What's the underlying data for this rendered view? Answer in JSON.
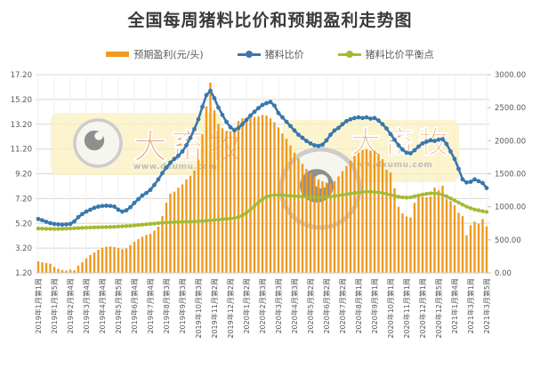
{
  "title": "全国每周猪料比价和预期盈利走势图",
  "watermark": {
    "brand": "大畜牧",
    "url": "www.dxumu.com"
  },
  "colors": {
    "bar_orange": "#f09a1e",
    "line_blue": "#3878ad",
    "line_olive": "#a5ba30",
    "grid": "#d8d8d8",
    "grid_vertical": "#efefef",
    "axis_text": "#595959",
    "watermark_fill": "#faf0bd",
    "watermark_text": "#e2702a"
  },
  "chart_data": {
    "type": "bar",
    "subtype": "combo bar+line, dual axis",
    "n_points": 113,
    "tick_every": 4,
    "x_tick_labels": [
      "2019年1月第1周",
      "2019年1月第5周",
      "2019年2月第4周",
      "2019年3月第4周",
      "2019年4月第4周",
      "2019年5月第5周",
      "2019年6月第4周",
      "2019年7月第4周",
      "2019年8月第3周",
      "2019年9月第3周",
      "2019年10月第3周",
      "2019年11月第2周",
      "2019年12月第2周",
      "2020年1月第2周",
      "2020年2月第3周",
      "2020年3月第3周",
      "2020年4月第3周",
      "2020年5月第2周",
      "2020年6月第2周",
      "2020年7月第2周",
      "2020年8月第1周",
      "2020年9月第1周",
      "2020年10月第1周",
      "2020年11月第1周",
      "2020年12月第1周",
      "2020年12月第5周",
      "2021年1月第4周",
      "2021年3月第1周",
      "2021年3月第5周"
    ],
    "left_axis": {
      "min": 1.2,
      "max": 17.2,
      "ticks": [
        "17.20",
        "15.20",
        "13.20",
        "11.20",
        "9.20",
        "7.20",
        "5.20",
        "3.20",
        "1.20"
      ]
    },
    "right_axis": {
      "min": 0,
      "max": 3000,
      "ticks": [
        "3000.00",
        "2500.00",
        "2000.00",
        "1500.00",
        "1000.00",
        "500.00",
        "0.00"
      ]
    },
    "series": [
      {
        "name": "预期盈利(元/头)",
        "type": "bar",
        "axis": "right",
        "color": "#f09a1e",
        "values": [
          175,
          160,
          150,
          140,
          90,
          60,
          45,
          35,
          50,
          40,
          110,
          160,
          220,
          270,
          310,
          350,
          380,
          395,
          400,
          390,
          375,
          360,
          370,
          420,
          470,
          510,
          545,
          575,
          590,
          640,
          700,
          860,
          1060,
          1200,
          1230,
          1290,
          1340,
          1415,
          1470,
          1550,
          1715,
          2100,
          2520,
          2880,
          2460,
          2255,
          2190,
          2145,
          2145,
          2200,
          2300,
          2340,
          2330,
          2350,
          2360,
          2370,
          2390,
          2380,
          2340,
          2280,
          2200,
          2110,
          2030,
          1930,
          1820,
          1730,
          1650,
          1575,
          1510,
          1460,
          1415,
          1385,
          1365,
          1350,
          1390,
          1460,
          1540,
          1620,
          1700,
          1770,
          1820,
          1860,
          1870,
          1850,
          1850,
          1800,
          1720,
          1560,
          1520,
          1280,
          1000,
          900,
          855,
          840,
          1060,
          1180,
          1150,
          1145,
          1155,
          1290,
          1250,
          1320,
          1115,
          1090,
          1020,
          910,
          860,
          570,
          720,
          775,
          745,
          815,
          705
        ]
      },
      {
        "name": "猪料比价",
        "type": "line",
        "axis": "left",
        "color": "#3878ad",
        "values": [
          5.55,
          5.45,
          5.32,
          5.22,
          5.15,
          5.12,
          5.1,
          5.12,
          5.15,
          5.35,
          5.7,
          5.95,
          6.15,
          6.3,
          6.45,
          6.55,
          6.6,
          6.62,
          6.6,
          6.55,
          6.3,
          6.15,
          6.25,
          6.5,
          6.85,
          7.15,
          7.45,
          7.65,
          7.9,
          8.3,
          8.75,
          9.25,
          9.7,
          10.1,
          10.4,
          10.65,
          11.0,
          11.5,
          12.1,
          12.8,
          13.6,
          14.6,
          15.55,
          15.9,
          15.3,
          14.55,
          13.95,
          13.4,
          12.95,
          12.7,
          12.9,
          13.2,
          13.55,
          13.9,
          14.2,
          14.5,
          14.75,
          14.9,
          15.0,
          14.7,
          14.1,
          13.75,
          13.4,
          13.05,
          12.7,
          12.35,
          12.1,
          11.85,
          11.65,
          11.5,
          11.45,
          11.55,
          11.9,
          12.35,
          12.7,
          12.9,
          13.2,
          13.45,
          13.6,
          13.7,
          13.75,
          13.7,
          13.75,
          13.65,
          13.7,
          13.5,
          13.2,
          12.85,
          12.4,
          11.95,
          11.5,
          11.15,
          10.9,
          10.85,
          11.1,
          11.4,
          11.65,
          11.8,
          11.9,
          11.85,
          11.95,
          12.0,
          11.6,
          11.0,
          10.4,
          9.6,
          8.75,
          8.5,
          8.55,
          8.75,
          8.6,
          8.45,
          8.05
        ]
      },
      {
        "name": "猪料比价平衡点",
        "type": "line",
        "axis": "left",
        "color": "#a5ba30",
        "values": [
          4.78,
          4.77,
          4.76,
          4.75,
          4.75,
          4.75,
          4.76,
          4.77,
          4.78,
          4.8,
          4.82,
          4.84,
          4.85,
          4.86,
          4.87,
          4.88,
          4.89,
          4.9,
          4.91,
          4.92,
          4.94,
          4.96,
          4.98,
          5.0,
          5.03,
          5.06,
          5.09,
          5.12,
          5.15,
          5.18,
          5.21,
          5.24,
          5.26,
          5.28,
          5.3,
          5.31,
          5.32,
          5.33,
          5.34,
          5.35,
          5.37,
          5.39,
          5.41,
          5.44,
          5.47,
          5.5,
          5.53,
          5.56,
          5.58,
          5.62,
          5.7,
          5.85,
          6.05,
          6.3,
          6.6,
          6.9,
          7.15,
          7.35,
          7.45,
          7.48,
          7.5,
          7.48,
          7.45,
          7.42,
          7.4,
          7.38,
          7.36,
          7.35,
          7.33,
          7.32,
          7.3,
          7.3,
          7.32,
          7.35,
          7.4,
          7.45,
          7.5,
          7.55,
          7.6,
          7.65,
          7.7,
          7.72,
          7.75,
          7.75,
          7.72,
          7.7,
          7.65,
          7.58,
          7.5,
          7.42,
          7.35,
          7.3,
          7.28,
          7.3,
          7.38,
          7.45,
          7.52,
          7.58,
          7.62,
          7.63,
          7.6,
          7.5,
          7.38,
          7.22,
          7.05,
          6.88,
          6.7,
          6.55,
          6.42,
          6.32,
          6.25,
          6.18,
          6.12
        ]
      }
    ],
    "legend_position": "top",
    "grid": true
  }
}
